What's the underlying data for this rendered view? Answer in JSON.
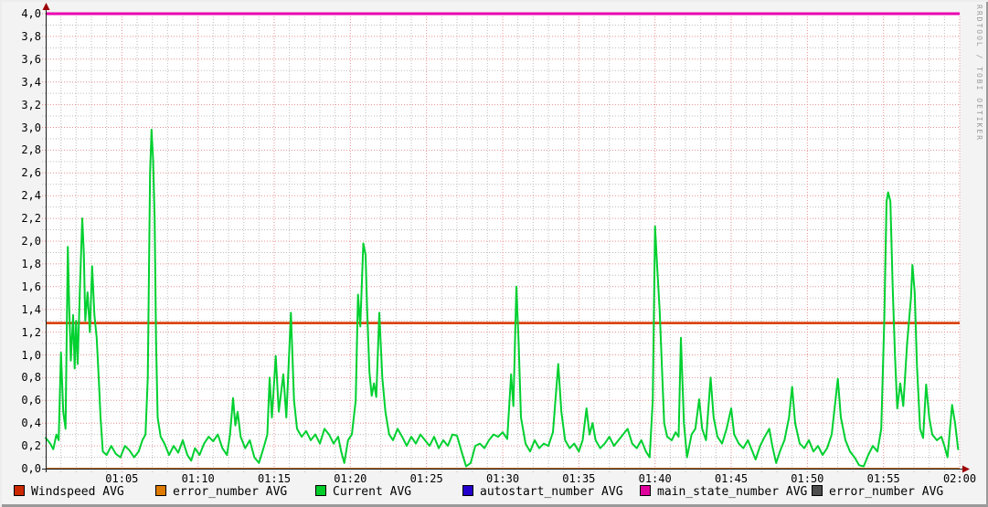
{
  "watermark": "RRDTOOL / TOBI OETIKER",
  "colors": {
    "image_background": "#f3f3f3",
    "plot_background": "#ffffff",
    "major_grid": "#e89090",
    "minor_grid": "#bdbdbd",
    "axis": "#1a1a1a",
    "arrow": "#9e0000"
  },
  "y_axis": {
    "labels": [
      "4,0",
      "3,8",
      "3,6",
      "3,4",
      "3,2",
      "3,0",
      "2,8",
      "2,6",
      "2,4",
      "2,2",
      "2,0",
      "1,8",
      "1,6",
      "1,4",
      "1,2",
      "1,0",
      "0,8",
      "0,6",
      "0,4",
      "0,2",
      "0,0"
    ],
    "values": [
      4.0,
      3.8,
      3.6,
      3.4,
      3.2,
      3.0,
      2.8,
      2.6,
      2.4,
      2.2,
      2.0,
      1.8,
      1.6,
      1.4,
      1.2,
      1.0,
      0.8,
      0.6,
      0.4,
      0.2,
      0.0
    ],
    "major_step": 0.2,
    "minor_step": 0.1
  },
  "x_axis": {
    "labels": [
      {
        "text": "01:05",
        "minute": 5
      },
      {
        "text": "01:10",
        "minute": 10
      },
      {
        "text": "01:15",
        "minute": 15
      },
      {
        "text": "01:20",
        "minute": 20
      },
      {
        "text": "01:25",
        "minute": 25
      },
      {
        "text": "01:30",
        "minute": 30
      },
      {
        "text": "01:35",
        "minute": 35
      },
      {
        "text": "01:40",
        "minute": 40
      },
      {
        "text": "01:45",
        "minute": 45
      },
      {
        "text": "01:50",
        "minute": 50
      },
      {
        "text": "01:55",
        "minute": 55
      },
      {
        "text": "02:00",
        "minute": 60
      }
    ],
    "start_time": "01:00",
    "end_time": "02:00",
    "major_step_min": 5,
    "minor_step_min": 1
  },
  "legend": [
    {
      "label": "Windspeed AVG",
      "color": "#cc2900"
    },
    {
      "label": "error_number AVG",
      "color": "#dd7b00"
    },
    {
      "label": "Current AVG",
      "color": "#00cc2c"
    },
    {
      "label": "autostart_number AVG",
      "color": "#2400cc"
    },
    {
      "label": "main_state_number AVG",
      "color": "#e0009e"
    },
    {
      "label": "error_number AVG",
      "color": "#4d4d4d"
    }
  ],
  "chart_data": {
    "type": "line",
    "title": "",
    "xlabel": "",
    "ylabel": "",
    "ylim": [
      0,
      4
    ],
    "x_range": [
      "01:00",
      "02:00"
    ],
    "grid": true,
    "legend_position": "bottom",
    "series": [
      {
        "name": "error_number AVG",
        "style": "hline",
        "value": 0.0,
        "color": "#4d4d4d",
        "width": 1.5
      },
      {
        "name": "autostart_number AVG",
        "style": "hline",
        "value": 0.0,
        "color": "#2400cc",
        "width": 1.5
      },
      {
        "name": "error_number AVG",
        "style": "hline",
        "value": 0.0,
        "color": "#dd7b00",
        "width": 1.5
      },
      {
        "name": "Windspeed AVG",
        "style": "hline",
        "value": 1.28,
        "color": "#d93600",
        "width": 2.5
      },
      {
        "name": "Current AVG",
        "style": "line",
        "color": "#00d030",
        "width": 2,
        "points_format": "[minutes_after_01:00, value]",
        "points": [
          [
            0,
            0.27
          ],
          [
            0.3,
            0.22
          ],
          [
            0.5,
            0.17
          ],
          [
            0.7,
            0.3
          ],
          [
            0.85,
            0.25
          ],
          [
            1.0,
            1.02
          ],
          [
            1.15,
            0.5
          ],
          [
            1.3,
            0.35
          ],
          [
            1.45,
            1.95
          ],
          [
            1.55,
            1.4
          ],
          [
            1.65,
            0.95
          ],
          [
            1.8,
            1.35
          ],
          [
            1.9,
            0.88
          ],
          [
            2.0,
            1.3
          ],
          [
            2.1,
            0.92
          ],
          [
            2.25,
            1.6
          ],
          [
            2.4,
            2.2
          ],
          [
            2.5,
            1.9
          ],
          [
            2.6,
            1.3
          ],
          [
            2.75,
            1.55
          ],
          [
            2.9,
            1.2
          ],
          [
            3.05,
            1.78
          ],
          [
            3.2,
            1.35
          ],
          [
            3.35,
            1.15
          ],
          [
            3.5,
            0.75
          ],
          [
            3.6,
            0.45
          ],
          [
            3.75,
            0.15
          ],
          [
            4.0,
            0.12
          ],
          [
            4.3,
            0.2
          ],
          [
            4.6,
            0.13
          ],
          [
            4.9,
            0.1
          ],
          [
            5.2,
            0.2
          ],
          [
            5.5,
            0.16
          ],
          [
            5.8,
            0.1
          ],
          [
            6.1,
            0.15
          ],
          [
            6.35,
            0.25
          ],
          [
            6.55,
            0.3
          ],
          [
            6.7,
            0.8
          ],
          [
            6.85,
            2.6
          ],
          [
            6.95,
            2.98
          ],
          [
            7.05,
            2.72
          ],
          [
            7.15,
            2.2
          ],
          [
            7.25,
            1.1
          ],
          [
            7.35,
            0.45
          ],
          [
            7.55,
            0.28
          ],
          [
            7.8,
            0.22
          ],
          [
            8.1,
            0.12
          ],
          [
            8.4,
            0.2
          ],
          [
            8.7,
            0.14
          ],
          [
            9.0,
            0.25
          ],
          [
            9.3,
            0.12
          ],
          [
            9.55,
            0.07
          ],
          [
            9.8,
            0.18
          ],
          [
            10.1,
            0.12
          ],
          [
            10.4,
            0.22
          ],
          [
            10.7,
            0.28
          ],
          [
            11.0,
            0.24
          ],
          [
            11.3,
            0.3
          ],
          [
            11.6,
            0.18
          ],
          [
            11.9,
            0.12
          ],
          [
            12.1,
            0.3
          ],
          [
            12.3,
            0.62
          ],
          [
            12.45,
            0.38
          ],
          [
            12.6,
            0.5
          ],
          [
            12.8,
            0.28
          ],
          [
            13.1,
            0.18
          ],
          [
            13.4,
            0.25
          ],
          [
            13.7,
            0.1
          ],
          [
            14.0,
            0.05
          ],
          [
            14.3,
            0.18
          ],
          [
            14.55,
            0.3
          ],
          [
            14.7,
            0.8
          ],
          [
            14.85,
            0.45
          ],
          [
            15.1,
            0.99
          ],
          [
            15.3,
            0.5
          ],
          [
            15.6,
            0.83
          ],
          [
            15.8,
            0.45
          ],
          [
            16.1,
            1.37
          ],
          [
            16.3,
            0.6
          ],
          [
            16.5,
            0.35
          ],
          [
            16.8,
            0.28
          ],
          [
            17.1,
            0.33
          ],
          [
            17.4,
            0.25
          ],
          [
            17.7,
            0.3
          ],
          [
            18.0,
            0.22
          ],
          [
            18.3,
            0.35
          ],
          [
            18.6,
            0.3
          ],
          [
            18.9,
            0.22
          ],
          [
            19.2,
            0.28
          ],
          [
            19.4,
            0.15
          ],
          [
            19.6,
            0.05
          ],
          [
            19.85,
            0.25
          ],
          [
            20.1,
            0.3
          ],
          [
            20.35,
            0.6
          ],
          [
            20.5,
            1.53
          ],
          [
            20.65,
            1.25
          ],
          [
            20.85,
            1.98
          ],
          [
            21.0,
            1.88
          ],
          [
            21.1,
            1.4
          ],
          [
            21.25,
            0.85
          ],
          [
            21.4,
            0.64
          ],
          [
            21.55,
            0.75
          ],
          [
            21.7,
            0.63
          ],
          [
            21.9,
            1.37
          ],
          [
            22.1,
            0.8
          ],
          [
            22.3,
            0.5
          ],
          [
            22.55,
            0.3
          ],
          [
            22.8,
            0.25
          ],
          [
            23.1,
            0.35
          ],
          [
            23.4,
            0.28
          ],
          [
            23.7,
            0.2
          ],
          [
            24.0,
            0.28
          ],
          [
            24.3,
            0.22
          ],
          [
            24.6,
            0.3
          ],
          [
            24.9,
            0.25
          ],
          [
            25.2,
            0.2
          ],
          [
            25.5,
            0.28
          ],
          [
            25.8,
            0.18
          ],
          [
            26.1,
            0.25
          ],
          [
            26.4,
            0.2
          ],
          [
            26.7,
            0.3
          ],
          [
            27.0,
            0.29
          ],
          [
            27.3,
            0.15
          ],
          [
            27.6,
            0.02
          ],
          [
            27.9,
            0.05
          ],
          [
            28.2,
            0.2
          ],
          [
            28.5,
            0.22
          ],
          [
            28.8,
            0.18
          ],
          [
            29.1,
            0.25
          ],
          [
            29.4,
            0.3
          ],
          [
            29.7,
            0.28
          ],
          [
            30.0,
            0.32
          ],
          [
            30.3,
            0.26
          ],
          [
            30.55,
            0.83
          ],
          [
            30.7,
            0.55
          ],
          [
            30.9,
            1.6
          ],
          [
            31.05,
            1.1
          ],
          [
            31.2,
            0.45
          ],
          [
            31.5,
            0.22
          ],
          [
            31.8,
            0.15
          ],
          [
            32.1,
            0.25
          ],
          [
            32.4,
            0.18
          ],
          [
            32.7,
            0.22
          ],
          [
            33.0,
            0.2
          ],
          [
            33.3,
            0.32
          ],
          [
            33.65,
            0.92
          ],
          [
            33.85,
            0.5
          ],
          [
            34.1,
            0.25
          ],
          [
            34.4,
            0.18
          ],
          [
            34.7,
            0.22
          ],
          [
            35.0,
            0.15
          ],
          [
            35.25,
            0.25
          ],
          [
            35.5,
            0.53
          ],
          [
            35.7,
            0.3
          ],
          [
            35.9,
            0.4
          ],
          [
            36.1,
            0.25
          ],
          [
            36.4,
            0.18
          ],
          [
            36.7,
            0.22
          ],
          [
            37.0,
            0.28
          ],
          [
            37.3,
            0.2
          ],
          [
            37.6,
            0.25
          ],
          [
            37.9,
            0.3
          ],
          [
            38.2,
            0.35
          ],
          [
            38.5,
            0.22
          ],
          [
            38.8,
            0.18
          ],
          [
            39.1,
            0.25
          ],
          [
            39.4,
            0.15
          ],
          [
            39.65,
            0.1
          ],
          [
            39.85,
            0.6
          ],
          [
            40.0,
            2.13
          ],
          [
            40.15,
            1.75
          ],
          [
            40.3,
            1.4
          ],
          [
            40.45,
            0.9
          ],
          [
            40.6,
            0.4
          ],
          [
            40.8,
            0.28
          ],
          [
            41.1,
            0.25
          ],
          [
            41.35,
            0.32
          ],
          [
            41.55,
            0.28
          ],
          [
            41.7,
            1.15
          ],
          [
            41.9,
            0.4
          ],
          [
            42.1,
            0.1
          ],
          [
            42.4,
            0.3
          ],
          [
            42.65,
            0.35
          ],
          [
            42.9,
            0.61
          ],
          [
            43.1,
            0.35
          ],
          [
            43.35,
            0.25
          ],
          [
            43.65,
            0.8
          ],
          [
            43.85,
            0.45
          ],
          [
            44.1,
            0.28
          ],
          [
            44.4,
            0.22
          ],
          [
            44.7,
            0.35
          ],
          [
            45.0,
            0.53
          ],
          [
            45.2,
            0.3
          ],
          [
            45.5,
            0.22
          ],
          [
            45.8,
            0.18
          ],
          [
            46.1,
            0.25
          ],
          [
            46.4,
            0.15
          ],
          [
            46.6,
            0.08
          ],
          [
            46.9,
            0.2
          ],
          [
            47.2,
            0.28
          ],
          [
            47.5,
            0.35
          ],
          [
            47.7,
            0.2
          ],
          [
            47.95,
            0.05
          ],
          [
            48.2,
            0.15
          ],
          [
            48.5,
            0.25
          ],
          [
            48.8,
            0.45
          ],
          [
            49.0,
            0.72
          ],
          [
            49.2,
            0.4
          ],
          [
            49.5,
            0.22
          ],
          [
            49.8,
            0.18
          ],
          [
            50.1,
            0.25
          ],
          [
            50.4,
            0.15
          ],
          [
            50.7,
            0.2
          ],
          [
            51.0,
            0.12
          ],
          [
            51.3,
            0.18
          ],
          [
            51.6,
            0.3
          ],
          [
            52.0,
            0.79
          ],
          [
            52.2,
            0.45
          ],
          [
            52.5,
            0.25
          ],
          [
            52.8,
            0.15
          ],
          [
            53.1,
            0.1
          ],
          [
            53.4,
            0.03
          ],
          [
            53.7,
            0.02
          ],
          [
            54.0,
            0.12
          ],
          [
            54.3,
            0.2
          ],
          [
            54.6,
            0.15
          ],
          [
            54.85,
            0.35
          ],
          [
            55.05,
            1.3
          ],
          [
            55.2,
            2.35
          ],
          [
            55.3,
            2.43
          ],
          [
            55.45,
            2.35
          ],
          [
            55.6,
            1.6
          ],
          [
            55.75,
            1.0
          ],
          [
            55.9,
            0.53
          ],
          [
            56.1,
            0.75
          ],
          [
            56.3,
            0.55
          ],
          [
            56.55,
            1.1
          ],
          [
            56.8,
            1.5
          ],
          [
            56.9,
            1.79
          ],
          [
            57.05,
            1.55
          ],
          [
            57.2,
            0.9
          ],
          [
            57.4,
            0.35
          ],
          [
            57.6,
            0.27
          ],
          [
            57.8,
            0.74
          ],
          [
            58.0,
            0.45
          ],
          [
            58.2,
            0.3
          ],
          [
            58.5,
            0.25
          ],
          [
            58.8,
            0.28
          ],
          [
            59.0,
            0.2
          ],
          [
            59.2,
            0.1
          ],
          [
            59.5,
            0.56
          ],
          [
            59.7,
            0.4
          ],
          [
            59.9,
            0.17
          ]
        ]
      },
      {
        "name": "main_state_number AVG",
        "style": "hline",
        "value": 4.0,
        "color": "#ea00b0",
        "width": 3
      }
    ]
  }
}
